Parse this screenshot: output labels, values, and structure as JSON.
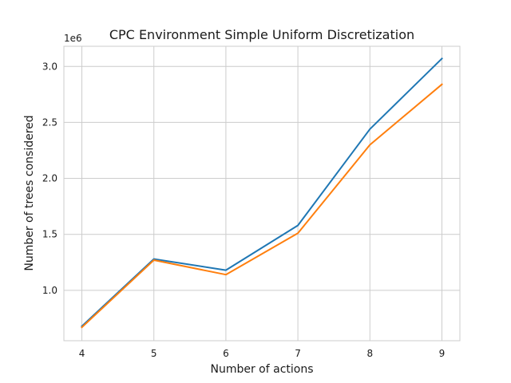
{
  "chart_data": {
    "type": "line",
    "title": "CPC Environment Simple Uniform Discretization",
    "xlabel": "Number of actions",
    "ylabel": "Number of trees considered",
    "offset_label": "1e6",
    "xlim": [
      3.75,
      9.25
    ],
    "ylim": [
      0.55,
      3.18
    ],
    "x_ticks": [
      4,
      5,
      6,
      7,
      8,
      9
    ],
    "x_tick_labels": [
      "4",
      "5",
      "6",
      "7",
      "8",
      "9"
    ],
    "y_ticks": [
      1.0,
      1.5,
      2.0,
      2.5,
      3.0
    ],
    "y_tick_labels": [
      "1.0",
      "1.5",
      "2.0",
      "2.5",
      "3.0"
    ],
    "grid": true,
    "x": [
      4,
      5,
      6,
      7,
      8,
      9
    ],
    "series": [
      {
        "color": "#1f77b4",
        "values": [
          0.68,
          1.28,
          1.18,
          1.58,
          2.44,
          3.07
        ]
      },
      {
        "color": "#ff7f0e",
        "values": [
          0.67,
          1.27,
          1.14,
          1.51,
          2.3,
          2.84
        ]
      }
    ]
  }
}
